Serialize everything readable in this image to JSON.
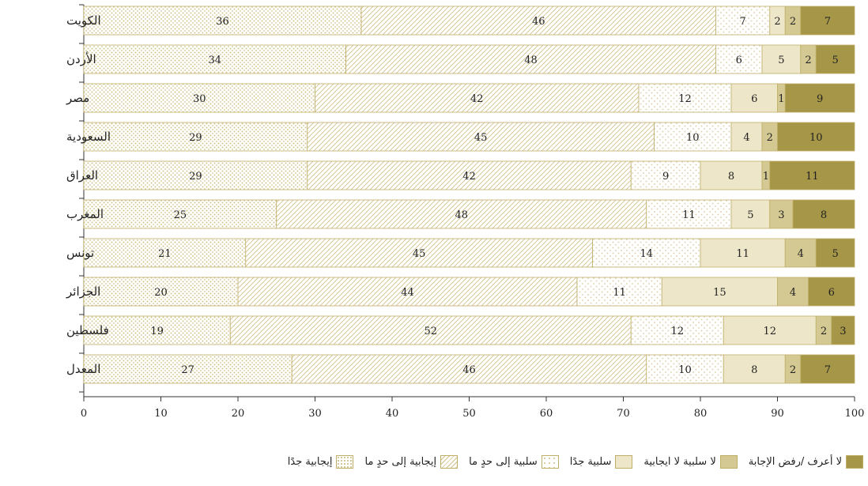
{
  "chart_data": {
    "type": "bar",
    "orientation": "horizontal",
    "stacked": true,
    "categories": [
      "الكويت",
      "الأردن",
      "مصر",
      "السعودية",
      "العراق",
      "المغرب",
      "تونس",
      "الجزائر",
      "فلسطين",
      "المعدل"
    ],
    "series": [
      {
        "name": "إيجابية جدًا",
        "color": "#b3a25a",
        "pattern": "dots-dense",
        "values": [
          36,
          34,
          30,
          29,
          29,
          25,
          21,
          20,
          19,
          27
        ]
      },
      {
        "name": "إيجابية إلى حدٍ ما",
        "color": "#b3a25a",
        "pattern": "diagonal",
        "values": [
          46,
          48,
          42,
          45,
          42,
          48,
          45,
          44,
          52,
          46
        ]
      },
      {
        "name": "سلبية إلى حدٍ ما",
        "color": "#b3a25a",
        "pattern": "dots-sparse",
        "values": [
          7,
          6,
          12,
          10,
          9,
          11,
          14,
          11,
          12,
          10
        ]
      },
      {
        "name": "سلبية جدًا",
        "color": "#ede6c8",
        "pattern": "solid",
        "values": [
          2,
          5,
          6,
          4,
          8,
          5,
          11,
          15,
          12,
          8
        ]
      },
      {
        "name": "لا سلبية لا ايجابية",
        "color": "#d4c992",
        "pattern": "solid",
        "values": [
          2,
          2,
          1,
          2,
          1,
          3,
          4,
          4,
          2,
          2
        ]
      },
      {
        "name": "لا أعرف /رفض الإجابة",
        "color": "#a69648",
        "pattern": "solid",
        "values": [
          7,
          5,
          9,
          10,
          11,
          8,
          5,
          6,
          3,
          7
        ]
      }
    ],
    "xlim": [
      0,
      100
    ],
    "xticks": [
      "0",
      "10",
      "20",
      "30",
      "40",
      "50",
      "60",
      "70",
      "80",
      "90",
      "100"
    ],
    "grid": false,
    "legend_position": "bottom-right"
  },
  "legend": {
    "items": [
      {
        "label": "لا أعرف /رفض الإجابة"
      },
      {
        "label": "لا سلبية لا ايجابية"
      },
      {
        "label": "سلبية جدًا"
      },
      {
        "label": "سلبية إلى حدٍ ما"
      },
      {
        "label": "إيجابية إلى حدٍ ما"
      },
      {
        "label": "إيجابية جدًا"
      }
    ]
  }
}
